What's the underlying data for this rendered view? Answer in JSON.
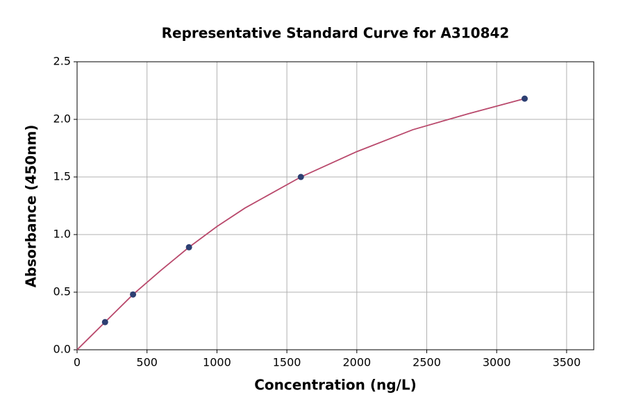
{
  "chart_data": {
    "type": "scatter",
    "title": "Representative Standard Curve for A310842",
    "x_label": "Concentration (ng/L)",
    "y_label": "Absorbance (450nm)",
    "x": [
      200,
      400,
      800,
      1600,
      3200
    ],
    "values": [
      0.24,
      0.48,
      0.89,
      1.5,
      2.18
    ],
    "color": "#2d3f72",
    "curve": {
      "color": "#b9496c",
      "x": [
        0,
        200,
        400,
        600,
        800,
        1000,
        1200,
        1600,
        2000,
        2400,
        2800,
        3200
      ],
      "values": [
        0,
        0.24,
        0.48,
        0.69,
        0.89,
        1.07,
        1.23,
        1.5,
        1.72,
        1.91,
        2.05,
        2.18
      ]
    },
    "xlim": [
      0,
      3694
    ],
    "ylim": [
      0,
      2.5
    ],
    "xticks": [
      0,
      500,
      1000,
      1500,
      2000,
      2500,
      3000,
      3500
    ],
    "yticks": [
      {
        "value": 0,
        "label": "0.0"
      },
      0.5,
      {
        "value": 1,
        "label": "1.0"
      },
      1.5,
      {
        "value": 2,
        "label": "2.0"
      },
      2.5
    ],
    "grid": true
  }
}
